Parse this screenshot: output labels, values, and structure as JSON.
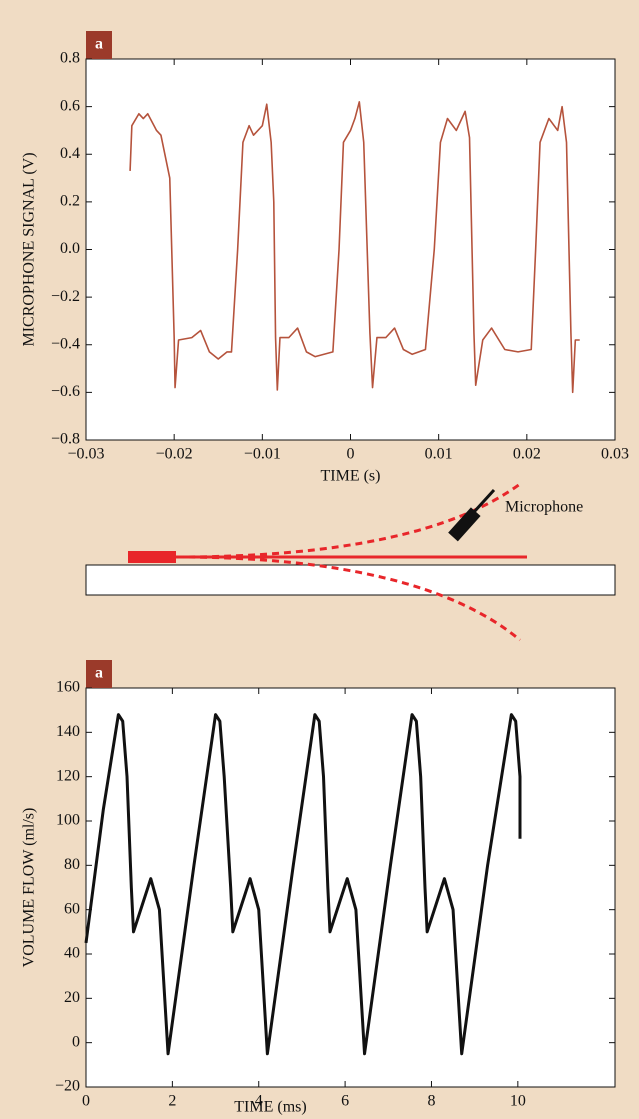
{
  "chart_data": [
    {
      "type": "line",
      "panel_label": "a",
      "xlabel": "TIME (s)",
      "ylabel": "MICROPHONE SIGNAL (V)",
      "xlim": [
        -0.03,
        0.03
      ],
      "ylim": [
        -0.8,
        0.8
      ],
      "xticks": [
        {
          "value": -0.03,
          "label": "−0.03"
        },
        {
          "value": -0.02,
          "label": "−0.02"
        },
        {
          "value": -0.01,
          "label": "−0.01"
        },
        0,
        0.01,
        0.02,
        0.03
      ],
      "yticks": [
        {
          "value": -0.8,
          "label": "−0.8"
        },
        {
          "value": -0.6,
          "label": "−0.6"
        },
        {
          "value": -0.4,
          "label": "−0.4"
        },
        {
          "value": -0.2,
          "label": "−0.2"
        },
        {
          "value": 0,
          "label": "0.0"
        },
        0.2,
        0.4,
        0.6,
        0.8
      ],
      "color": "#b5533c",
      "x": [
        -0.025,
        -0.0248,
        -0.024,
        -0.0235,
        -0.023,
        -0.022,
        -0.0215,
        -0.0205,
        -0.02,
        -0.0199,
        -0.0195,
        -0.018,
        -0.017,
        -0.016,
        -0.015,
        -0.014,
        -0.0135,
        -0.0128,
        -0.0122,
        -0.0115,
        -0.011,
        -0.01,
        -0.0095,
        -0.009,
        -0.0087,
        -0.0085,
        -0.0083,
        -0.008,
        -0.007,
        -0.006,
        -0.005,
        -0.004,
        -0.002,
        -0.0013,
        -0.0008,
        0,
        0.0005,
        0.001,
        0.0015,
        0.0022,
        0.0025,
        0.003,
        0.004,
        0.005,
        0.006,
        0.007,
        0.0085,
        0.0095,
        0.0102,
        0.011,
        0.012,
        0.013,
        0.0135,
        0.014,
        0.0142,
        0.015,
        0.016,
        0.0175,
        0.019,
        0.0205,
        0.021,
        0.0215,
        0.0225,
        0.0235,
        0.024,
        0.0245,
        0.025,
        0.0252,
        0.0255,
        0.026
      ],
      "values": [
        0.33,
        0.52,
        0.57,
        0.55,
        0.57,
        0.5,
        0.48,
        0.3,
        -0.37,
        -0.58,
        -0.38,
        -0.37,
        -0.34,
        -0.43,
        -0.46,
        -0.43,
        -0.43,
        0.0,
        0.45,
        0.52,
        0.48,
        0.52,
        0.61,
        0.45,
        0.2,
        -0.37,
        -0.59,
        -0.37,
        -0.37,
        -0.33,
        -0.43,
        -0.45,
        -0.43,
        0.0,
        0.45,
        0.5,
        0.55,
        0.62,
        0.45,
        -0.35,
        -0.58,
        -0.37,
        -0.37,
        -0.33,
        -0.42,
        -0.44,
        -0.42,
        0.0,
        0.45,
        0.55,
        0.5,
        0.58,
        0.47,
        -0.35,
        -0.57,
        -0.38,
        -0.33,
        -0.42,
        -0.43,
        -0.42,
        0.0,
        0.45,
        0.55,
        0.5,
        0.6,
        0.45,
        -0.35,
        -0.6,
        -0.38,
        -0.38
      ]
    },
    {
      "type": "line",
      "panel_label": "a",
      "xlabel": "TIME (ms)",
      "ylabel": "VOLUME FLOW (ml/s)",
      "xlim": [
        0,
        12.25
      ],
      "ylim": [
        -20,
        160
      ],
      "xticks": [
        0,
        2,
        4,
        6,
        8,
        10
      ],
      "yticks": [
        {
          "value": -20,
          "label": "−20"
        },
        0,
        20,
        40,
        60,
        80,
        100,
        120,
        140,
        160
      ],
      "color": "#111111",
      "x": [
        0,
        0.4,
        0.75,
        0.85,
        0.95,
        1.05,
        1.1,
        1.3,
        1.5,
        1.7,
        1.9,
        2.5,
        3.0,
        3.1,
        3.2,
        3.35,
        3.4,
        3.6,
        3.8,
        4.0,
        4.2,
        4.8,
        5.3,
        5.4,
        5.5,
        5.6,
        5.65,
        5.85,
        6.05,
        6.25,
        6.45,
        7.05,
        7.55,
        7.65,
        7.75,
        7.85,
        7.9,
        8.1,
        8.3,
        8.5,
        8.7,
        9.3,
        9.85,
        9.95,
        10.05,
        10.05
      ],
      "values": [
        45,
        105,
        148,
        145,
        120,
        70,
        50,
        62,
        74,
        60,
        -5,
        80,
        148,
        145,
        120,
        70,
        50,
        62,
        74,
        60,
        -5,
        80,
        148,
        145,
        120,
        70,
        50,
        62,
        74,
        60,
        -5,
        80,
        148,
        145,
        120,
        70,
        50,
        62,
        74,
        60,
        -5,
        80,
        148,
        145,
        120,
        92
      ]
    }
  ],
  "diagram": {
    "label": "Microphone"
  }
}
